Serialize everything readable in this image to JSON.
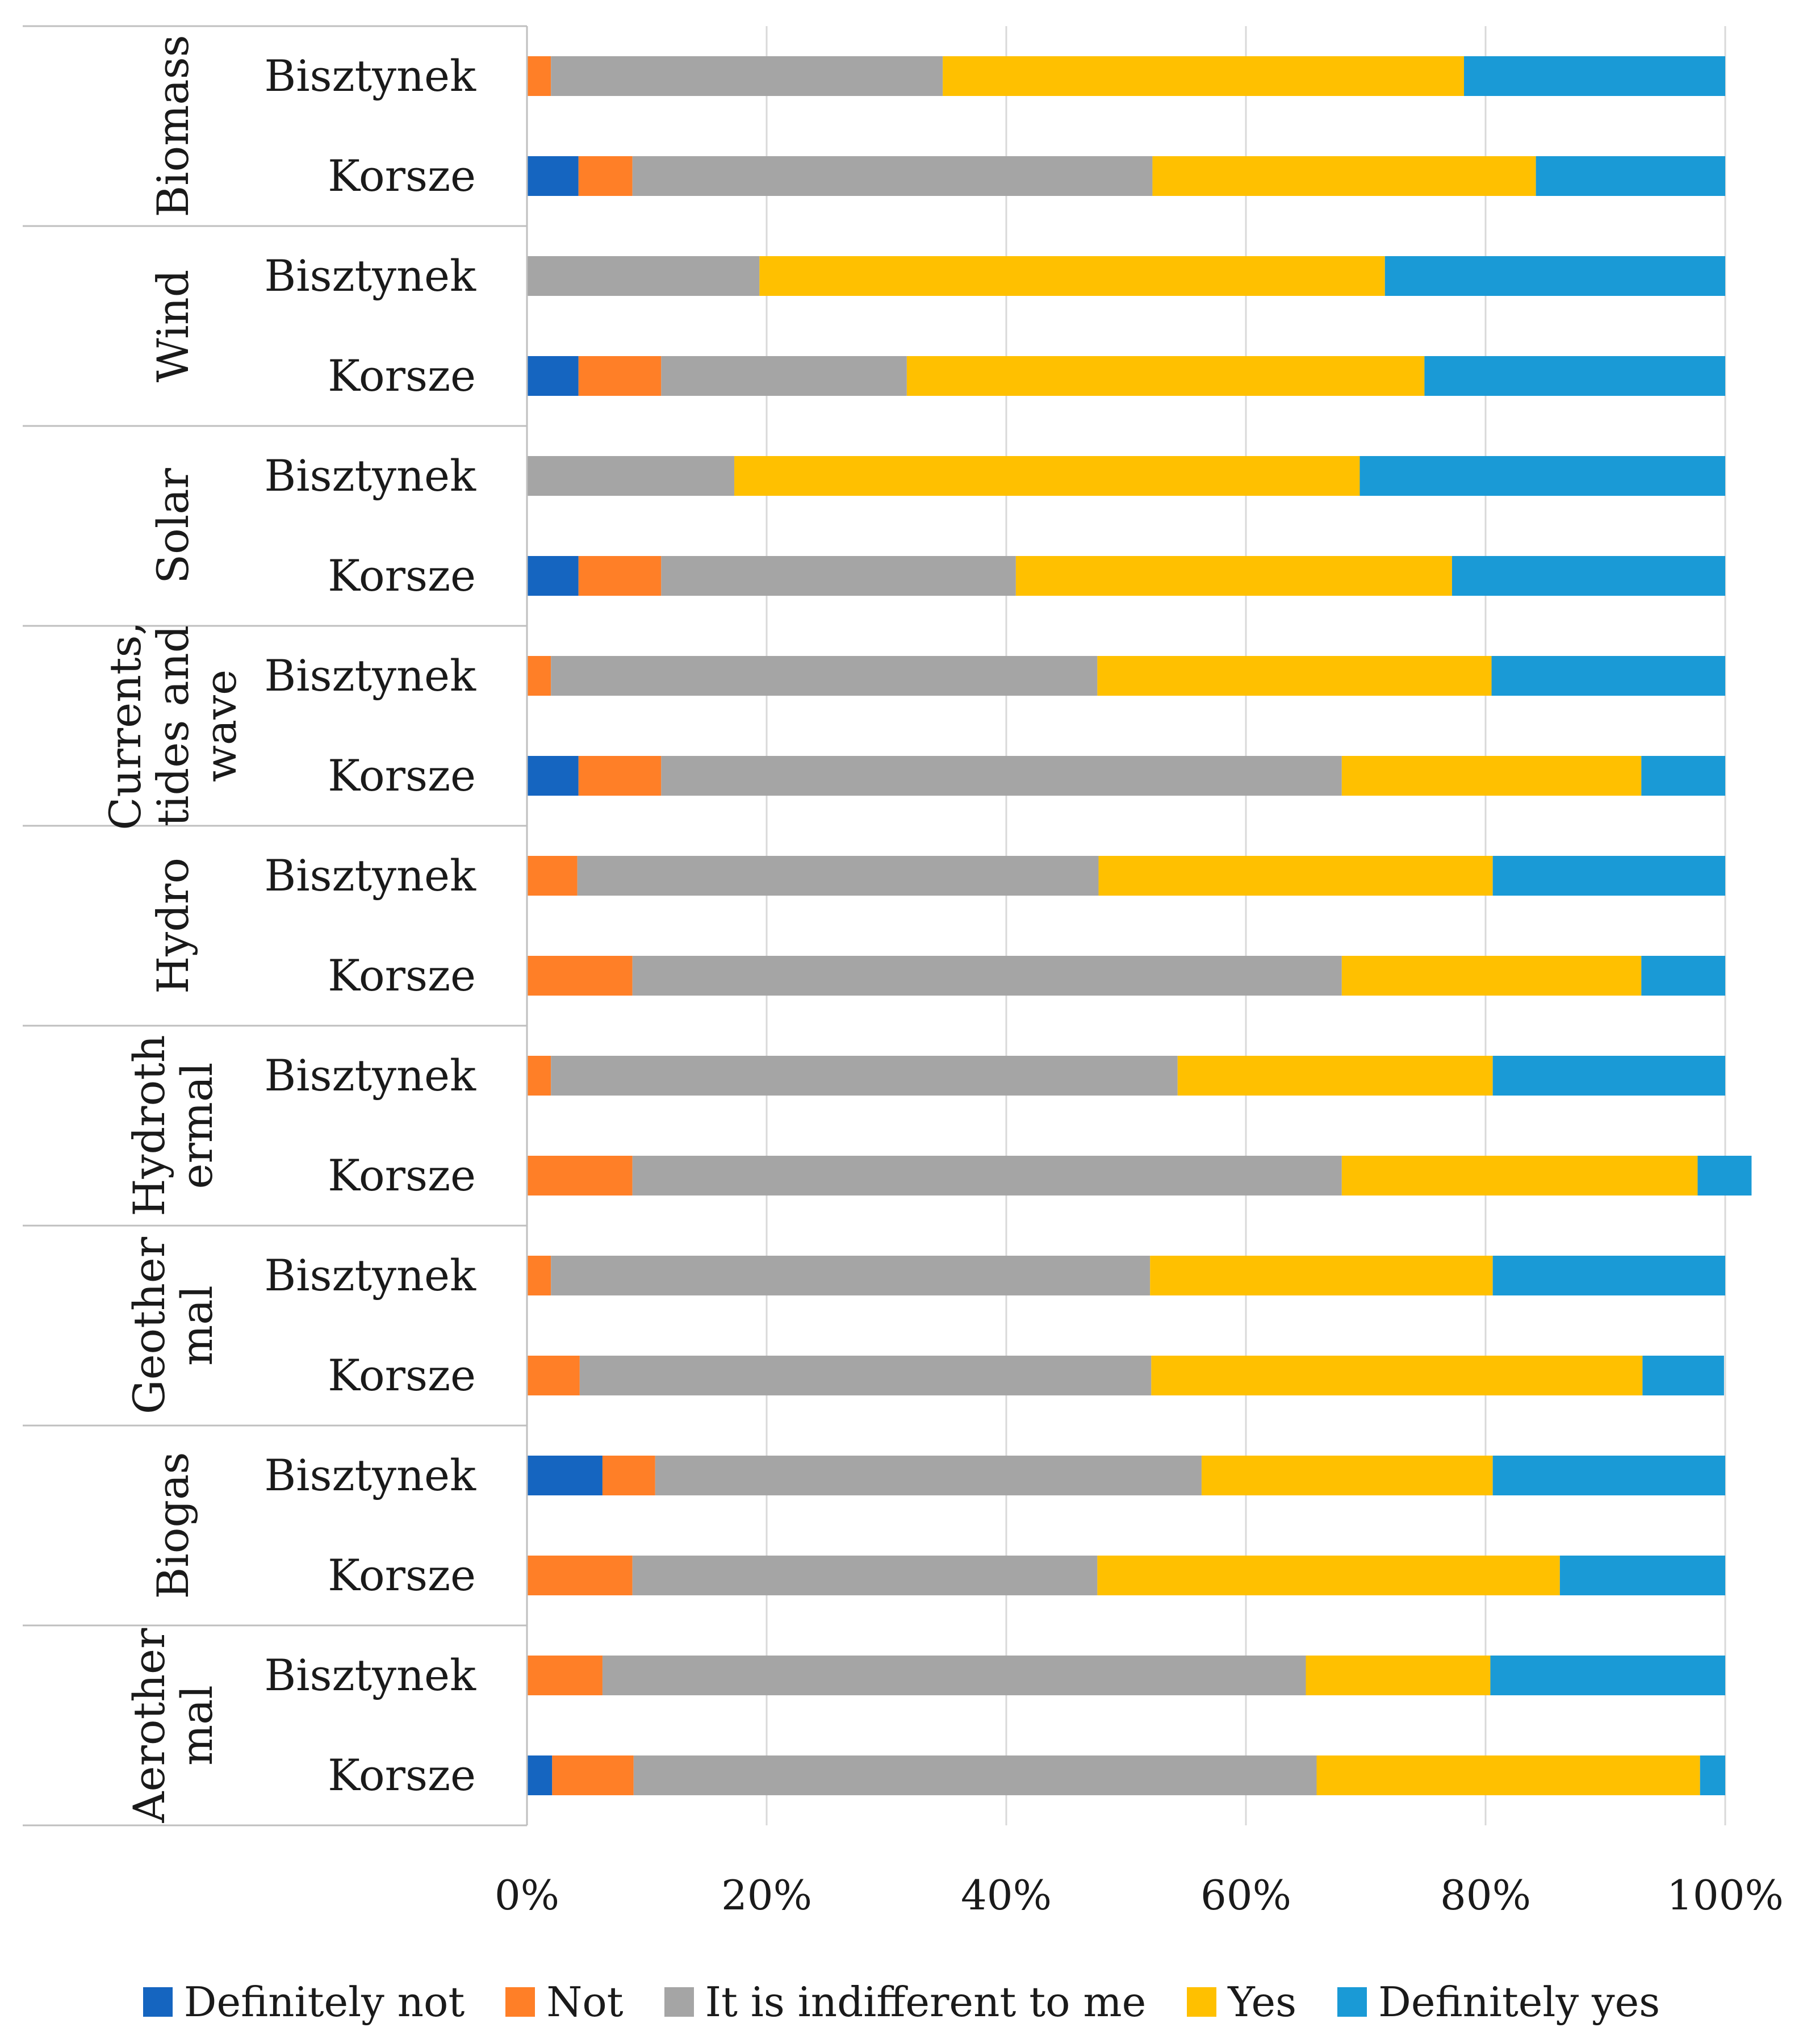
{
  "chart_data": {
    "type": "bar",
    "orientation": "horizontal",
    "stacked": "percent",
    "title": "",
    "xlabel": "",
    "ylabel": "",
    "xlim": [
      0,
      100
    ],
    "x_ticks": [
      "0%",
      "20%",
      "40%",
      "60%",
      "80%",
      "100%"
    ],
    "gridlines": "vertical",
    "legend_position": "bottom",
    "groups": [
      "Biomass",
      "Wind",
      "Solar",
      "Currents, tides and wave",
      "Hydro",
      "Hydrothermal",
      "Geothermal",
      "Biogas",
      "Aerothermal"
    ],
    "group_label_lines": [
      [
        "Biomass"
      ],
      [
        "Wind"
      ],
      [
        "Solar"
      ],
      [
        "Currents,",
        "tides and",
        "wave"
      ],
      [
        "Hydro"
      ],
      [
        "Hydroth",
        "ermal"
      ],
      [
        "Geother",
        "mal"
      ],
      [
        "Biogas"
      ],
      [
        "Aerother",
        "mal"
      ]
    ],
    "subcategories": [
      "Bisztynek",
      "Korsze"
    ],
    "series": [
      {
        "name": "Definitely not",
        "color": "#1565c0",
        "values": [
          0,
          4.3,
          0,
          4.3,
          0,
          4.3,
          0,
          4.3,
          0,
          0,
          0,
          0,
          0,
          0,
          6.3,
          0,
          0,
          2.1
        ]
      },
      {
        "name": "Not",
        "color": "#ff7f27",
        "values": [
          2.0,
          4.5,
          0,
          6.9,
          0,
          6.9,
          2.0,
          6.9,
          4.2,
          8.8,
          2.0,
          8.8,
          2.0,
          4.4,
          4.4,
          8.8,
          6.3,
          6.8
        ]
      },
      {
        "name": "It is indifferent to me",
        "color": "#a5a5a5",
        "values": [
          32.7,
          43.4,
          19.4,
          20.5,
          17.3,
          29.6,
          45.6,
          56.8,
          43.5,
          59.2,
          52.3,
          59.2,
          50.0,
          47.7,
          45.6,
          38.8,
          58.7,
          57.0
        ]
      },
      {
        "name": "Yes",
        "color": "#ffc000",
        "values": [
          43.5,
          32.0,
          52.2,
          43.2,
          52.2,
          36.4,
          32.9,
          25.0,
          32.9,
          25.0,
          26.3,
          29.7,
          28.6,
          41.0,
          24.3,
          38.6,
          15.4,
          32.0
        ]
      },
      {
        "name": "Definitely yes",
        "color": "#1a9ad6",
        "values": [
          21.8,
          15.8,
          28.4,
          25.1,
          30.5,
          22.8,
          19.5,
          7.0,
          19.4,
          7.0,
          19.4,
          4.5,
          19.4,
          6.8,
          19.4,
          13.8,
          19.6,
          2.1
        ]
      }
    ]
  }
}
